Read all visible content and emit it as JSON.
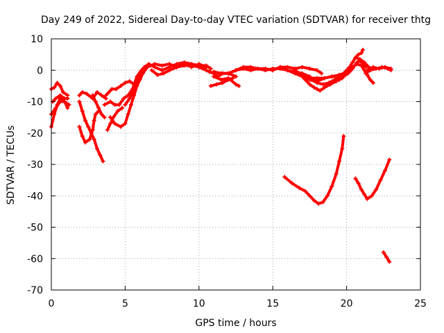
{
  "chart_data": {
    "type": "line",
    "title": "Day 249 of 2022, Sidereal Day-to-day VTEC variation (SDTVAR) for receiver thtg",
    "xlabel": "GPS time / hours",
    "ylabel": "SDTVAR / TECUs",
    "xlim": [
      0,
      25
    ],
    "ylim": [
      -70,
      10
    ],
    "xticks": [
      0,
      5,
      10,
      15,
      20,
      25
    ],
    "yticks": [
      10,
      0,
      -10,
      -20,
      -30,
      -40,
      -50,
      -60,
      -70
    ],
    "grid": true,
    "color": "#ff0000",
    "series": [
      {
        "name": "s1",
        "points": [
          [
            0.0,
            -18
          ],
          [
            0.2,
            -14
          ],
          [
            0.4,
            -11
          ],
          [
            0.6,
            -9
          ],
          [
            0.9,
            -10
          ],
          [
            1.1,
            -12
          ]
        ]
      },
      {
        "name": "s2",
        "points": [
          [
            0.0,
            -6
          ],
          [
            0.2,
            -5.5
          ],
          [
            0.4,
            -4
          ],
          [
            0.6,
            -5
          ],
          [
            0.8,
            -7
          ],
          [
            1.1,
            -8
          ]
        ]
      },
      {
        "name": "s3",
        "points": [
          [
            0.0,
            -14
          ],
          [
            0.3,
            -12
          ],
          [
            0.6,
            -10
          ],
          [
            0.9,
            -10
          ],
          [
            1.2,
            -11
          ]
        ]
      },
      {
        "name": "s4",
        "points": [
          [
            0.1,
            -10
          ],
          [
            0.3,
            -9
          ],
          [
            0.6,
            -8
          ],
          [
            0.9,
            -9
          ],
          [
            1.1,
            -9
          ]
        ]
      },
      {
        "name": "s5",
        "points": [
          [
            1.9,
            -8
          ],
          [
            2.1,
            -7
          ],
          [
            2.4,
            -7.5
          ],
          [
            2.8,
            -9
          ],
          [
            3.1,
            -7
          ],
          [
            3.4,
            -8
          ],
          [
            3.7,
            -9
          ]
        ]
      },
      {
        "name": "s6",
        "points": [
          [
            1.9,
            -18
          ],
          [
            2.1,
            -21
          ],
          [
            2.3,
            -23
          ],
          [
            2.6,
            -22
          ],
          [
            2.8,
            -19
          ],
          [
            2.9,
            -16
          ],
          [
            3.0,
            -14
          ],
          [
            3.2,
            -13
          ]
        ]
      },
      {
        "name": "s7",
        "points": [
          [
            1.9,
            -10
          ],
          [
            2.1,
            -13
          ],
          [
            2.3,
            -16
          ],
          [
            2.5,
            -18
          ],
          [
            2.7,
            -20
          ],
          [
            2.9,
            -22
          ],
          [
            3.1,
            -25
          ],
          [
            3.3,
            -27
          ],
          [
            3.5,
            -29
          ]
        ]
      },
      {
        "name": "s8",
        "points": [
          [
            2.8,
            -8
          ],
          [
            3.0,
            -10
          ],
          [
            3.2,
            -12
          ],
          [
            3.4,
            -14
          ],
          [
            3.6,
            -15
          ]
        ]
      },
      {
        "name": "s9",
        "points": [
          [
            3.7,
            -8
          ],
          [
            3.9,
            -7
          ],
          [
            4.1,
            -6
          ],
          [
            4.4,
            -6
          ],
          [
            4.7,
            -5
          ],
          [
            5.0,
            -4
          ],
          [
            5.3,
            -3.5
          ],
          [
            5.6,
            -4.5
          ]
        ]
      },
      {
        "name": "s10",
        "points": [
          [
            3.6,
            -11
          ],
          [
            4.0,
            -10
          ],
          [
            4.3,
            -11
          ],
          [
            4.6,
            -11
          ],
          [
            4.9,
            -9
          ],
          [
            5.2,
            -8
          ],
          [
            5.5,
            -6
          ],
          [
            5.8,
            -2
          ],
          [
            6.1,
            0
          ],
          [
            6.4,
            1
          ],
          [
            6.7,
            1.5
          ]
        ]
      },
      {
        "name": "s11",
        "points": [
          [
            4.0,
            -15
          ],
          [
            4.3,
            -17
          ],
          [
            4.7,
            -18
          ],
          [
            5.0,
            -17
          ],
          [
            5.2,
            -14
          ],
          [
            5.4,
            -11
          ],
          [
            5.6,
            -8
          ],
          [
            5.8,
            -5
          ],
          [
            6.0,
            -3
          ],
          [
            6.2,
            -1
          ],
          [
            6.5,
            1
          ]
        ]
      },
      {
        "name": "s12",
        "points": [
          [
            3.8,
            -19
          ],
          [
            4.0,
            -17
          ],
          [
            4.2,
            -15
          ],
          [
            4.5,
            -13
          ],
          [
            4.8,
            -12
          ]
        ]
      },
      {
        "name": "s13",
        "points": [
          [
            5.0,
            -11
          ],
          [
            5.3,
            -9
          ],
          [
            5.7,
            -5
          ],
          [
            6.0,
            -1
          ],
          [
            6.3,
            1
          ],
          [
            6.6,
            2
          ],
          [
            7.0,
            1
          ],
          [
            7.5,
            0
          ],
          [
            8.0,
            1
          ],
          [
            8.5,
            2
          ],
          [
            9.0,
            2.5
          ],
          [
            9.5,
            2
          ],
          [
            10.0,
            1.5
          ],
          [
            10.5,
            1.5
          ],
          [
            10.8,
            0.5
          ]
        ]
      },
      {
        "name": "s14",
        "points": [
          [
            6.5,
            1
          ],
          [
            7.0,
            2
          ],
          [
            7.5,
            1.5
          ],
          [
            8.0,
            2
          ],
          [
            8.5,
            1
          ],
          [
            9.0,
            1.5
          ],
          [
            9.5,
            1.5
          ],
          [
            10.0,
            1
          ],
          [
            10.3,
            0.5
          ],
          [
            10.7,
            -0.5
          ],
          [
            11.0,
            -1
          ]
        ]
      },
      {
        "name": "s15",
        "points": [
          [
            6.8,
            0
          ],
          [
            7.2,
            -1.5
          ],
          [
            7.6,
            -1
          ],
          [
            8.0,
            0
          ],
          [
            8.5,
            1
          ],
          [
            9.0,
            2
          ],
          [
            9.5,
            1
          ],
          [
            10.0,
            2
          ],
          [
            10.5,
            1
          ]
        ]
      },
      {
        "name": "s16",
        "points": [
          [
            10.0,
            1
          ],
          [
            10.5,
            0
          ],
          [
            11.0,
            -1
          ],
          [
            11.3,
            -2
          ],
          [
            11.6,
            -1
          ],
          [
            12.0,
            -1
          ],
          [
            12.5,
            -2
          ]
        ]
      },
      {
        "name": "s17",
        "points": [
          [
            10.8,
            -5
          ],
          [
            11.2,
            -4.5
          ],
          [
            11.6,
            -4
          ],
          [
            12.0,
            -3
          ],
          [
            12.3,
            -2.5
          ]
        ]
      },
      {
        "name": "s18",
        "points": [
          [
            11.0,
            -2
          ],
          [
            11.5,
            -3
          ],
          [
            12.0,
            -2.5
          ],
          [
            12.5,
            -4.5
          ],
          [
            12.7,
            -5
          ]
        ]
      },
      {
        "name": "s19",
        "points": [
          [
            11.0,
            -0.5
          ],
          [
            11.5,
            -1
          ],
          [
            12.0,
            -1
          ],
          [
            12.5,
            0
          ],
          [
            13.0,
            1
          ],
          [
            13.5,
            1
          ],
          [
            14.0,
            0.5
          ],
          [
            14.5,
            0.5
          ],
          [
            15.0,
            0
          ],
          [
            15.5,
            1
          ],
          [
            16.0,
            1
          ],
          [
            16.5,
            0.5
          ],
          [
            17.0,
            1
          ],
          [
            17.5,
            0.5
          ],
          [
            18.0,
            0
          ],
          [
            18.3,
            -1
          ]
        ]
      },
      {
        "name": "s20",
        "points": [
          [
            12.0,
            -1
          ],
          [
            12.5,
            0
          ],
          [
            13.0,
            0.5
          ],
          [
            13.5,
            0
          ],
          [
            14.0,
            0.5
          ],
          [
            14.5,
            0
          ],
          [
            15.0,
            0.5
          ],
          [
            15.5,
            0.5
          ],
          [
            16.0,
            0
          ],
          [
            16.5,
            -0.5
          ],
          [
            17.0,
            -1
          ],
          [
            17.5,
            -2
          ]
        ]
      },
      {
        "name": "s21",
        "points": [
          [
            15.5,
            1
          ],
          [
            16.0,
            0
          ],
          [
            16.5,
            -1
          ],
          [
            17.0,
            -2
          ],
          [
            17.5,
            -2.5
          ],
          [
            18.0,
            -2.5
          ],
          [
            18.5,
            -2.5
          ],
          [
            19.0,
            -2
          ],
          [
            19.5,
            -2
          ],
          [
            20.0,
            -1
          ],
          [
            20.3,
            0
          ]
        ]
      },
      {
        "name": "s22",
        "points": [
          [
            16.6,
            -0.5
          ],
          [
            16.9,
            -1.5
          ],
          [
            17.2,
            -3
          ],
          [
            17.5,
            -4.5
          ],
          [
            17.8,
            -5.5
          ],
          [
            18.0,
            -6
          ],
          [
            18.2,
            -6.5
          ],
          [
            18.5,
            -5.5
          ],
          [
            18.9,
            -4.5
          ],
          [
            19.3,
            -3.5
          ],
          [
            19.7,
            -2.5
          ],
          [
            20.0,
            -1
          ],
          [
            20.3,
            0
          ]
        ]
      },
      {
        "name": "s23",
        "points": [
          [
            16.5,
            0
          ],
          [
            16.8,
            -1
          ],
          [
            17.2,
            -2
          ],
          [
            17.6,
            -3
          ],
          [
            18.0,
            -4
          ],
          [
            18.4,
            -4.5
          ],
          [
            18.8,
            -4
          ],
          [
            19.2,
            -3
          ],
          [
            19.6,
            -2
          ],
          [
            19.9,
            -1
          ]
        ]
      },
      {
        "name": "s24",
        "points": [
          [
            17.0,
            -2
          ],
          [
            17.5,
            -3
          ],
          [
            18.0,
            -3.5
          ],
          [
            18.5,
            -2.5
          ],
          [
            19.0,
            -2
          ],
          [
            19.5,
            -1.5
          ],
          [
            19.8,
            -1
          ],
          [
            20.0,
            0
          ],
          [
            20.2,
            1
          ],
          [
            20.4,
            2.5
          ],
          [
            20.6,
            4
          ],
          [
            20.8,
            5
          ],
          [
            21.0,
            5.5
          ],
          [
            21.1,
            6.5
          ]
        ]
      },
      {
        "name": "s25",
        "points": [
          [
            19.5,
            -3
          ],
          [
            19.8,
            -2
          ],
          [
            20.1,
            -1
          ],
          [
            20.4,
            0.5
          ],
          [
            20.7,
            2.5
          ],
          [
            20.9,
            3
          ],
          [
            21.1,
            2
          ],
          [
            21.3,
            1
          ]
        ]
      },
      {
        "name": "s26",
        "points": [
          [
            20.1,
            -1
          ],
          [
            20.4,
            1
          ],
          [
            20.7,
            2
          ],
          [
            21.0,
            1.5
          ],
          [
            21.2,
            0
          ],
          [
            21.4,
            -1.5
          ],
          [
            21.6,
            -3
          ],
          [
            21.8,
            -4
          ]
        ]
      },
      {
        "name": "s27",
        "points": [
          [
            20.6,
            4
          ],
          [
            20.9,
            3.5
          ],
          [
            21.2,
            2.5
          ],
          [
            21.5,
            1
          ],
          [
            21.8,
            0.5
          ]
        ]
      },
      {
        "name": "s28",
        "points": [
          [
            21.3,
            -1
          ],
          [
            21.6,
            0
          ],
          [
            22.0,
            0.5
          ],
          [
            22.4,
            1
          ],
          [
            22.8,
            0.5
          ],
          [
            23.0,
            0
          ]
        ]
      },
      {
        "name": "s29",
        "points": [
          [
            21.4,
            0
          ],
          [
            21.8,
            1
          ],
          [
            22.2,
            0.5
          ],
          [
            22.6,
            1
          ],
          [
            23.0,
            0.5
          ]
        ]
      },
      {
        "name": "s30",
        "points": [
          [
            15.8,
            -34
          ],
          [
            16.3,
            -36
          ],
          [
            16.8,
            -37.5
          ],
          [
            17.2,
            -38.5
          ],
          [
            17.5,
            -40
          ],
          [
            17.8,
            -41.5
          ],
          [
            18.1,
            -42.5
          ],
          [
            18.4,
            -42
          ],
          [
            18.7,
            -40
          ],
          [
            19.0,
            -37
          ],
          [
            19.3,
            -33
          ],
          [
            19.5,
            -29
          ],
          [
            19.7,
            -25
          ],
          [
            19.8,
            -21
          ]
        ]
      },
      {
        "name": "s31",
        "points": [
          [
            20.6,
            -34.5
          ],
          [
            20.8,
            -36
          ],
          [
            21.0,
            -38
          ],
          [
            21.2,
            -39.5
          ],
          [
            21.4,
            -41
          ],
          [
            21.7,
            -40
          ],
          [
            22.0,
            -38
          ],
          [
            22.3,
            -35
          ],
          [
            22.6,
            -32
          ],
          [
            22.9,
            -28.5
          ]
        ]
      },
      {
        "name": "s32",
        "points": [
          [
            22.5,
            -58
          ],
          [
            22.7,
            -59.5
          ],
          [
            22.9,
            -61
          ]
        ]
      }
    ]
  }
}
